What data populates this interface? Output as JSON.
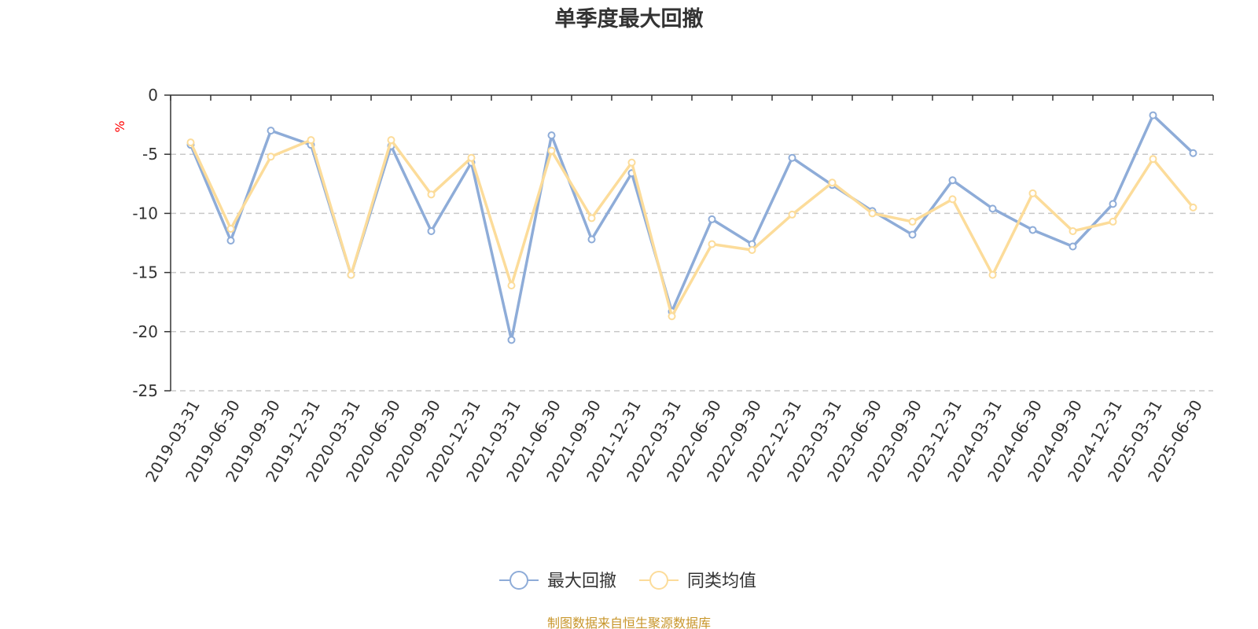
{
  "colors": {
    "series1": "#8eacd8",
    "series2": "#fcdc9a",
    "axis": "#333333",
    "grid": "#c8c8c8",
    "unit": "#ff0000",
    "source": "#c8962b"
  },
  "footer": {
    "source": "制图数据来自恒生聚源数据库"
  },
  "chart_data": {
    "type": "line",
    "title": "单季度最大回撤",
    "ylabel": "%",
    "ylim": [
      -25,
      0
    ],
    "yticks": [
      0,
      -5,
      -10,
      -15,
      -20,
      -25
    ],
    "grid": "horizontal dashed",
    "legend_position": "bottom-center",
    "categories": [
      "2019-03-31",
      "2019-06-30",
      "2019-09-30",
      "2019-12-31",
      "2020-03-31",
      "2020-06-30",
      "2020-09-30",
      "2020-12-31",
      "2021-03-31",
      "2021-06-30",
      "2021-09-30",
      "2021-12-31",
      "2022-03-31",
      "2022-06-30",
      "2022-09-30",
      "2022-12-31",
      "2023-03-31",
      "2023-06-30",
      "2023-09-30",
      "2023-12-31",
      "2024-03-31",
      "2024-06-30",
      "2024-09-30",
      "2024-12-31",
      "2025-03-31",
      "2025-06-30"
    ],
    "series": [
      {
        "name": "最大回撤",
        "values": [
          -4.2,
          -12.3,
          -3.0,
          -4.2,
          -15.2,
          -4.3,
          -11.5,
          -5.7,
          -20.7,
          -3.4,
          -12.2,
          -6.6,
          -18.3,
          -10.5,
          -12.6,
          -5.3,
          -7.6,
          -9.8,
          -11.8,
          -7.2,
          -9.6,
          -11.4,
          -12.8,
          -9.2,
          -1.7,
          -4.9
        ]
      },
      {
        "name": "同类均值",
        "values": [
          -4.0,
          -11.3,
          -5.2,
          -3.8,
          -15.2,
          -3.8,
          -8.4,
          -5.3,
          -16.1,
          -4.7,
          -10.4,
          -5.7,
          -18.7,
          -12.6,
          -13.1,
          -10.1,
          -7.4,
          -10.0,
          -10.7,
          -8.8,
          -15.2,
          -8.3,
          -11.5,
          -10.7,
          -5.4,
          -9.5
        ]
      }
    ]
  }
}
